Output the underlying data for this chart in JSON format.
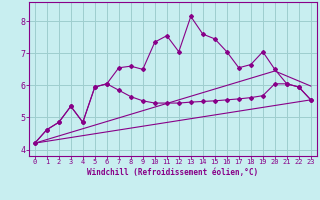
{
  "xlabel": "Windchill (Refroidissement éolien,°C)",
  "background_color": "#c8eef0",
  "grid_color": "#9ecece",
  "line_color": "#880088",
  "xlim": [
    -0.5,
    23.5
  ],
  "ylim": [
    3.8,
    8.6
  ],
  "x_ticks": [
    0,
    1,
    2,
    3,
    4,
    5,
    6,
    7,
    8,
    9,
    10,
    11,
    12,
    13,
    14,
    15,
    16,
    17,
    18,
    19,
    20,
    21,
    22,
    23
  ],
  "y_ticks": [
    4,
    5,
    6,
    7,
    8
  ],
  "series1_x": [
    0,
    1,
    2,
    3,
    4,
    5,
    6,
    7,
    8,
    9,
    10,
    11,
    12,
    13,
    14,
    15,
    16,
    17,
    18,
    19,
    20,
    21,
    22,
    23
  ],
  "series1_y": [
    4.2,
    4.62,
    4.85,
    5.35,
    4.85,
    5.95,
    6.05,
    6.55,
    6.6,
    6.5,
    7.35,
    7.55,
    7.05,
    8.15,
    7.6,
    7.45,
    7.05,
    6.55,
    6.65,
    7.05,
    6.5,
    6.05,
    5.95,
    5.55
  ],
  "series2_x": [
    0,
    1,
    2,
    3,
    4,
    5,
    6,
    7,
    8,
    9,
    10,
    11,
    12,
    13,
    14,
    15,
    16,
    17,
    18,
    19,
    20,
    21,
    22,
    23
  ],
  "series2_y": [
    4.2,
    4.62,
    4.85,
    5.35,
    4.85,
    5.95,
    6.05,
    5.85,
    5.65,
    5.52,
    5.45,
    5.45,
    5.45,
    5.48,
    5.5,
    5.52,
    5.55,
    5.58,
    5.62,
    5.68,
    6.05,
    6.05,
    5.95,
    5.55
  ],
  "series3_x": [
    0,
    23
  ],
  "series3_y": [
    4.2,
    5.55
  ],
  "series4_x": [
    0,
    20,
    23
  ],
  "series4_y": [
    4.2,
    6.45,
    5.98
  ]
}
